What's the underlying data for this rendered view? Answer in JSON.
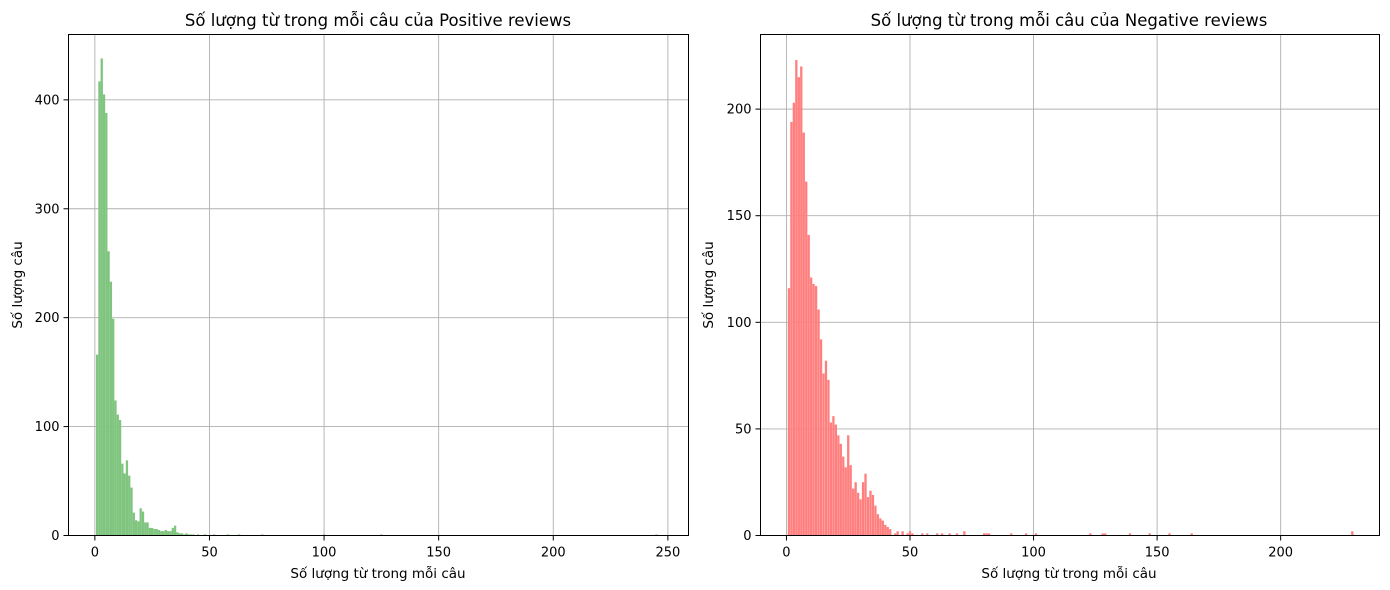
{
  "chart_data": [
    {
      "type": "bar",
      "title": "Số lượng từ trong mỗi câu của Positive reviews",
      "xlabel": "Số lượng từ trong mỗi câu",
      "ylabel": "Số lượng câu",
      "xlim": [
        -11.5,
        259
      ],
      "ylim": [
        0,
        460
      ],
      "xticks": [
        0,
        50,
        100,
        150,
        200,
        250
      ],
      "yticks": [
        0,
        100,
        200,
        300,
        400
      ],
      "xtick_labels": [
        "0",
        "50",
        "100",
        "150",
        "200",
        "250"
      ],
      "ytick_labels": [
        "0",
        "100",
        "200",
        "300",
        "400"
      ],
      "grid": true,
      "color": "#7fc47f",
      "bin_width": 1,
      "bins": [
        {
          "x": 1,
          "value": 166
        },
        {
          "x": 2,
          "value": 417
        },
        {
          "x": 3,
          "value": 438
        },
        {
          "x": 4,
          "value": 405
        },
        {
          "x": 5,
          "value": 388
        },
        {
          "x": 6,
          "value": 261
        },
        {
          "x": 7,
          "value": 233
        },
        {
          "x": 8,
          "value": 199
        },
        {
          "x": 9,
          "value": 124
        },
        {
          "x": 10,
          "value": 111
        },
        {
          "x": 11,
          "value": 106
        },
        {
          "x": 12,
          "value": 66
        },
        {
          "x": 13,
          "value": 57
        },
        {
          "x": 14,
          "value": 69
        },
        {
          "x": 15,
          "value": 55
        },
        {
          "x": 16,
          "value": 44
        },
        {
          "x": 17,
          "value": 21
        },
        {
          "x": 18,
          "value": 14
        },
        {
          "x": 19,
          "value": 13
        },
        {
          "x": 20,
          "value": 25
        },
        {
          "x": 21,
          "value": 22
        },
        {
          "x": 22,
          "value": 12
        },
        {
          "x": 23,
          "value": 12
        },
        {
          "x": 24,
          "value": 7
        },
        {
          "x": 25,
          "value": 7
        },
        {
          "x": 26,
          "value": 6
        },
        {
          "x": 27,
          "value": 6
        },
        {
          "x": 28,
          "value": 5
        },
        {
          "x": 29,
          "value": 4
        },
        {
          "x": 30,
          "value": 4
        },
        {
          "x": 31,
          "value": 5
        },
        {
          "x": 32,
          "value": 4
        },
        {
          "x": 33,
          "value": 4
        },
        {
          "x": 34,
          "value": 7
        },
        {
          "x": 35,
          "value": 9
        },
        {
          "x": 36,
          "value": 3
        },
        {
          "x": 37,
          "value": 2
        },
        {
          "x": 38,
          "value": 2
        },
        {
          "x": 39,
          "value": 1
        },
        {
          "x": 40,
          "value": 2
        },
        {
          "x": 41,
          "value": 1
        },
        {
          "x": 42,
          "value": 1
        },
        {
          "x": 43,
          "value": 1
        },
        {
          "x": 45,
          "value": 1
        },
        {
          "x": 48,
          "value": 1
        },
        {
          "x": 52,
          "value": 1
        },
        {
          "x": 58,
          "value": 1
        },
        {
          "x": 63,
          "value": 1
        },
        {
          "x": 73,
          "value": 1
        },
        {
          "x": 100,
          "value": 1
        },
        {
          "x": 125,
          "value": 1
        },
        {
          "x": 245,
          "value": 1
        }
      ]
    },
    {
      "type": "bar",
      "title": "Số lượng từ trong mỗi câu của Negative reviews",
      "xlabel": "Số lượng từ trong mỗi câu",
      "ylabel": "Số lượng câu",
      "xlim": [
        -10.5,
        240
      ],
      "ylim": [
        0,
        235
      ],
      "xticks": [
        0,
        50,
        100,
        150,
        200
      ],
      "yticks": [
        0,
        50,
        100,
        150,
        200
      ],
      "xtick_labels": [
        "0",
        "50",
        "100",
        "150",
        "200"
      ],
      "ytick_labels": [
        "0",
        "50",
        "100",
        "150",
        "200"
      ],
      "grid": true,
      "color": "#ff7f7f",
      "bin_width": 0.93,
      "bins": [
        {
          "x": 1,
          "value": 116
        },
        {
          "x": 2,
          "value": 194
        },
        {
          "x": 3,
          "value": 203
        },
        {
          "x": 4,
          "value": 223
        },
        {
          "x": 5,
          "value": 215
        },
        {
          "x": 6,
          "value": 220
        },
        {
          "x": 7,
          "value": 189
        },
        {
          "x": 8,
          "value": 166
        },
        {
          "x": 9,
          "value": 141
        },
        {
          "x": 10,
          "value": 121
        },
        {
          "x": 11,
          "value": 118
        },
        {
          "x": 12,
          "value": 117
        },
        {
          "x": 13,
          "value": 106
        },
        {
          "x": 14,
          "value": 92
        },
        {
          "x": 15,
          "value": 76
        },
        {
          "x": 16,
          "value": 82
        },
        {
          "x": 17,
          "value": 73
        },
        {
          "x": 18,
          "value": 53
        },
        {
          "x": 19,
          "value": 56
        },
        {
          "x": 20,
          "value": 52
        },
        {
          "x": 21,
          "value": 47
        },
        {
          "x": 22,
          "value": 43
        },
        {
          "x": 23,
          "value": 37
        },
        {
          "x": 24,
          "value": 32
        },
        {
          "x": 25,
          "value": 47
        },
        {
          "x": 26,
          "value": 33
        },
        {
          "x": 27,
          "value": 22
        },
        {
          "x": 28,
          "value": 25
        },
        {
          "x": 29,
          "value": 20
        },
        {
          "x": 30,
          "value": 17
        },
        {
          "x": 31,
          "value": 25
        },
        {
          "x": 32,
          "value": 29
        },
        {
          "x": 33,
          "value": 18
        },
        {
          "x": 34,
          "value": 21
        },
        {
          "x": 35,
          "value": 19
        },
        {
          "x": 36,
          "value": 14
        },
        {
          "x": 37,
          "value": 10
        },
        {
          "x": 38,
          "value": 8
        },
        {
          "x": 39,
          "value": 7
        },
        {
          "x": 40,
          "value": 5
        },
        {
          "x": 41,
          "value": 4
        },
        {
          "x": 42,
          "value": 3
        },
        {
          "x": 44,
          "value": 1
        },
        {
          "x": 45,
          "value": 2
        },
        {
          "x": 47,
          "value": 2
        },
        {
          "x": 49,
          "value": 1
        },
        {
          "x": 50,
          "value": 2
        },
        {
          "x": 51,
          "value": 1
        },
        {
          "x": 55,
          "value": 1
        },
        {
          "x": 57,
          "value": 1
        },
        {
          "x": 61,
          "value": 1
        },
        {
          "x": 63,
          "value": 1
        },
        {
          "x": 66,
          "value": 1
        },
        {
          "x": 69,
          "value": 1
        },
        {
          "x": 72,
          "value": 2
        },
        {
          "x": 80,
          "value": 1
        },
        {
          "x": 81,
          "value": 1
        },
        {
          "x": 82,
          "value": 1
        },
        {
          "x": 91,
          "value": 1
        },
        {
          "x": 97,
          "value": 1
        },
        {
          "x": 101,
          "value": 1
        },
        {
          "x": 123,
          "value": 1
        },
        {
          "x": 128,
          "value": 1
        },
        {
          "x": 129,
          "value": 1
        },
        {
          "x": 139,
          "value": 1
        },
        {
          "x": 147,
          "value": 1
        },
        {
          "x": 155,
          "value": 1
        },
        {
          "x": 164,
          "value": 1
        },
        {
          "x": 229,
          "value": 2
        }
      ]
    }
  ]
}
